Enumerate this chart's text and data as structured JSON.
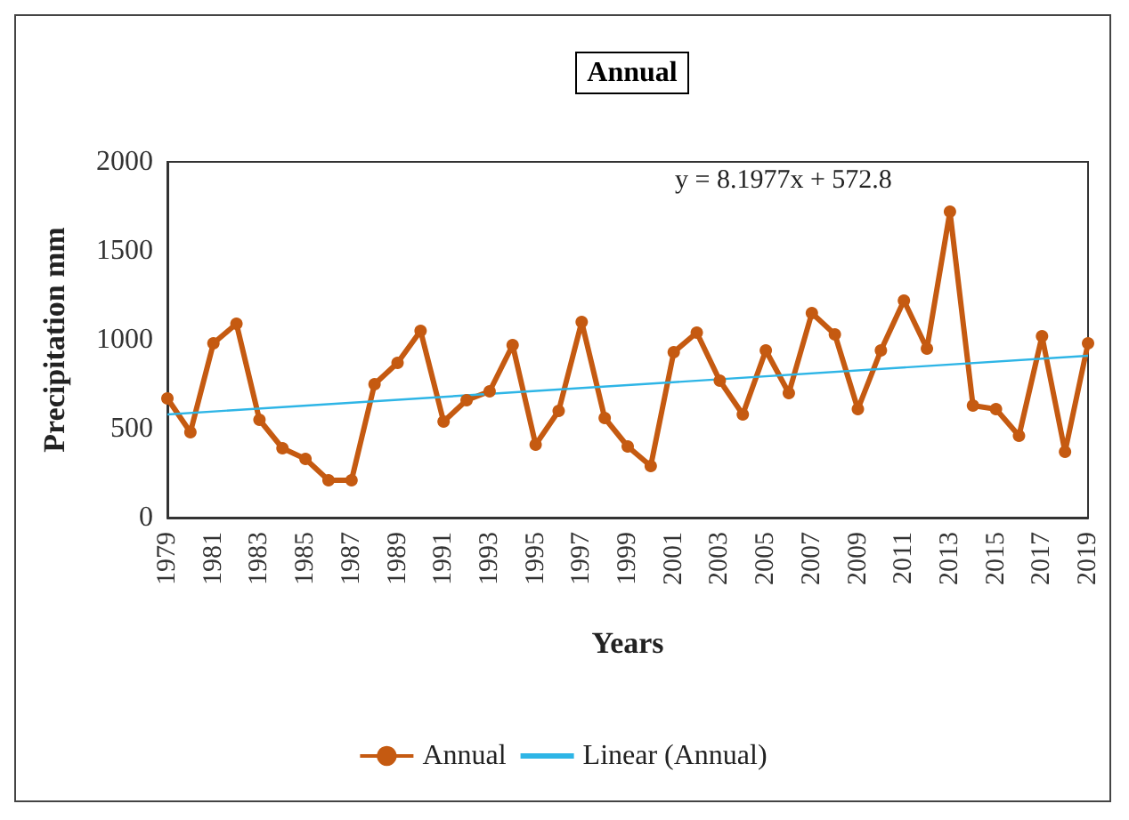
{
  "chart_data": {
    "type": "line",
    "title": "Annual",
    "xlabel": "Years",
    "ylabel": "Precipitation mm",
    "categories": [
      "1979",
      null,
      "1981",
      null,
      "1983",
      null,
      "1985",
      null,
      "1987",
      null,
      "1989",
      null,
      "1991",
      null,
      "1993",
      null,
      "1995",
      null,
      "1997",
      null,
      "1999",
      null,
      "2001",
      null,
      "2003",
      null,
      "2005",
      null,
      "2007",
      null,
      "2009",
      null,
      "2011",
      null,
      "2013",
      null,
      "2015",
      null,
      "2017",
      null,
      "2019"
    ],
    "series": [
      {
        "name": "Annual",
        "color": "#c55a11",
        "marker": "circle",
        "values": [
          670,
          480,
          980,
          1090,
          550,
          390,
          330,
          210,
          210,
          750,
          870,
          1050,
          540,
          660,
          710,
          970,
          410,
          600,
          1100,
          560,
          400,
          290,
          930,
          1040,
          770,
          580,
          940,
          700,
          1150,
          1030,
          610,
          940,
          1220,
          950,
          1720,
          630,
          610,
          460,
          1020,
          370,
          980
        ]
      },
      {
        "name": "Linear (Annual)",
        "type": "line",
        "color": "#2eb5e6",
        "marker": "none",
        "values": [
          580,
          null,
          null,
          null,
          null,
          null,
          null,
          null,
          null,
          null,
          null,
          null,
          null,
          null,
          null,
          null,
          null,
          null,
          null,
          null,
          null,
          null,
          null,
          null,
          null,
          null,
          null,
          null,
          null,
          null,
          null,
          null,
          null,
          null,
          null,
          null,
          null,
          null,
          null,
          null,
          910
        ]
      }
    ],
    "ylim": [
      0,
      2000
    ],
    "yticks": [
      0,
      500,
      1000,
      1500,
      2000
    ],
    "grid": false,
    "legend": "bottom",
    "annotations": [
      "y = 8.1977x + 572.8"
    ]
  }
}
